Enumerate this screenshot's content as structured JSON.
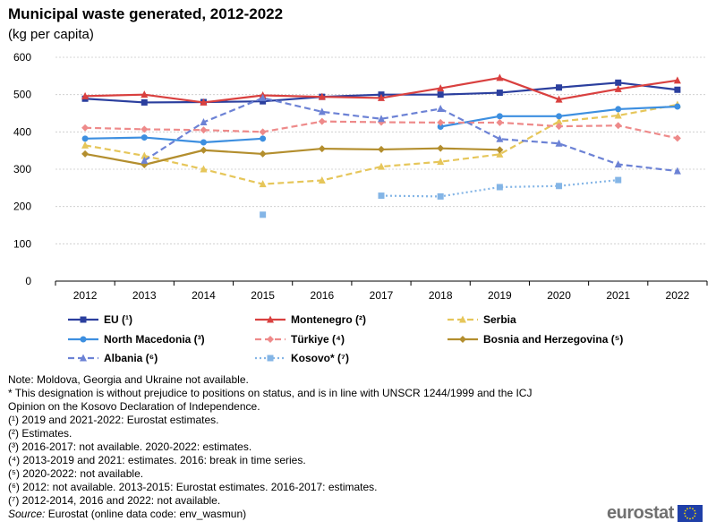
{
  "chart_data": {
    "type": "line",
    "title": "Municipal waste generated, 2012-2022",
    "subtitle": "(kg per capita)",
    "xlabel": "",
    "ylabel": "",
    "ylim": [
      0,
      600
    ],
    "yticks": [
      0,
      100,
      200,
      300,
      400,
      500,
      600
    ],
    "categories": [
      "2012",
      "2013",
      "2014",
      "2015",
      "2016",
      "2017",
      "2018",
      "2019",
      "2020",
      "2021",
      "2022"
    ],
    "grid": true,
    "legend_position": "bottom",
    "series": [
      {
        "name": "EU (¹)",
        "color": "#2b3f9e",
        "dash": "solid",
        "marker": "square",
        "values": [
          489,
          479,
          480,
          482,
          494,
          500,
          500,
          505,
          519,
          532,
          513
        ]
      },
      {
        "name": "Montenegro (²)",
        "color": "#d9403f",
        "dash": "solid",
        "marker": "triangle",
        "values": [
          496,
          500,
          479,
          498,
          494,
          491,
          517,
          545,
          487,
          515,
          538
        ]
      },
      {
        "name": "Serbia",
        "color": "#e6c65a",
        "dash": "dashed",
        "marker": "triangle",
        "values": [
          364,
          336,
          300,
          260,
          270,
          307,
          320,
          340,
          428,
          444,
          473
        ]
      },
      {
        "name": "North Macedonia (³)",
        "color": "#3d8fe0",
        "dash": "solid",
        "marker": "circle",
        "values": [
          382,
          385,
          372,
          382,
          null,
          null,
          414,
          442,
          442,
          461,
          468
        ]
      },
      {
        "name": "Türkiye (⁴)",
        "color": "#ee8a8a",
        "dash": "dashed",
        "marker": "diamond",
        "values": [
          411,
          407,
          405,
          400,
          428,
          426,
          425,
          425,
          415,
          417,
          383
        ]
      },
      {
        "name": "Bosnia and Herzegovina (⁵)",
        "color": "#b38e2e",
        "dash": "solid",
        "marker": "diamond",
        "values": [
          341,
          312,
          351,
          341,
          355,
          353,
          356,
          352,
          null,
          null,
          null
        ]
      },
      {
        "name": "Albania (⁶)",
        "color": "#6c82d5",
        "dash": "dashed",
        "marker": "triangle",
        "values": [
          null,
          323,
          426,
          491,
          454,
          435,
          462,
          381,
          369,
          313,
          295
        ]
      },
      {
        "name": "Kosovo* (⁷)",
        "color": "#84b5e6",
        "dash": "dotted",
        "marker": "square",
        "values": [
          null,
          null,
          null,
          178,
          null,
          229,
          227,
          252,
          255,
          271,
          null
        ]
      }
    ]
  },
  "notes": [
    "Note: Moldova, Georgia and Ukraine not available.",
    "* This designation is without prejudice to positions on status, and is in line with UNSCR 1244/1999 and the ICJ",
    "Opinion on the Kosovo Declaration of Independence.",
    "(¹) 2019 and 2021-2022: Eurostat estimates.",
    "(²) Estimates.",
    "(³) 2016-2017: not available. 2020-2022: estimates.",
    "(⁴) 2013-2019 and 2021: estimates. 2016: break in time series.",
    "(⁵) 2020-2022: not available.",
    "(⁶) 2012: not available. 2013-2015: Eurostat estimates. 2016-2017: estimates.",
    "(⁷) 2012-2014, 2016 and 2022: not available."
  ],
  "source": {
    "label": "Source:",
    "text": " Eurostat (online data code: env_wasmun)"
  },
  "logo": {
    "text": "eurostat",
    "flag_color": "#1f3fa8",
    "star_color": "#f5d800"
  }
}
